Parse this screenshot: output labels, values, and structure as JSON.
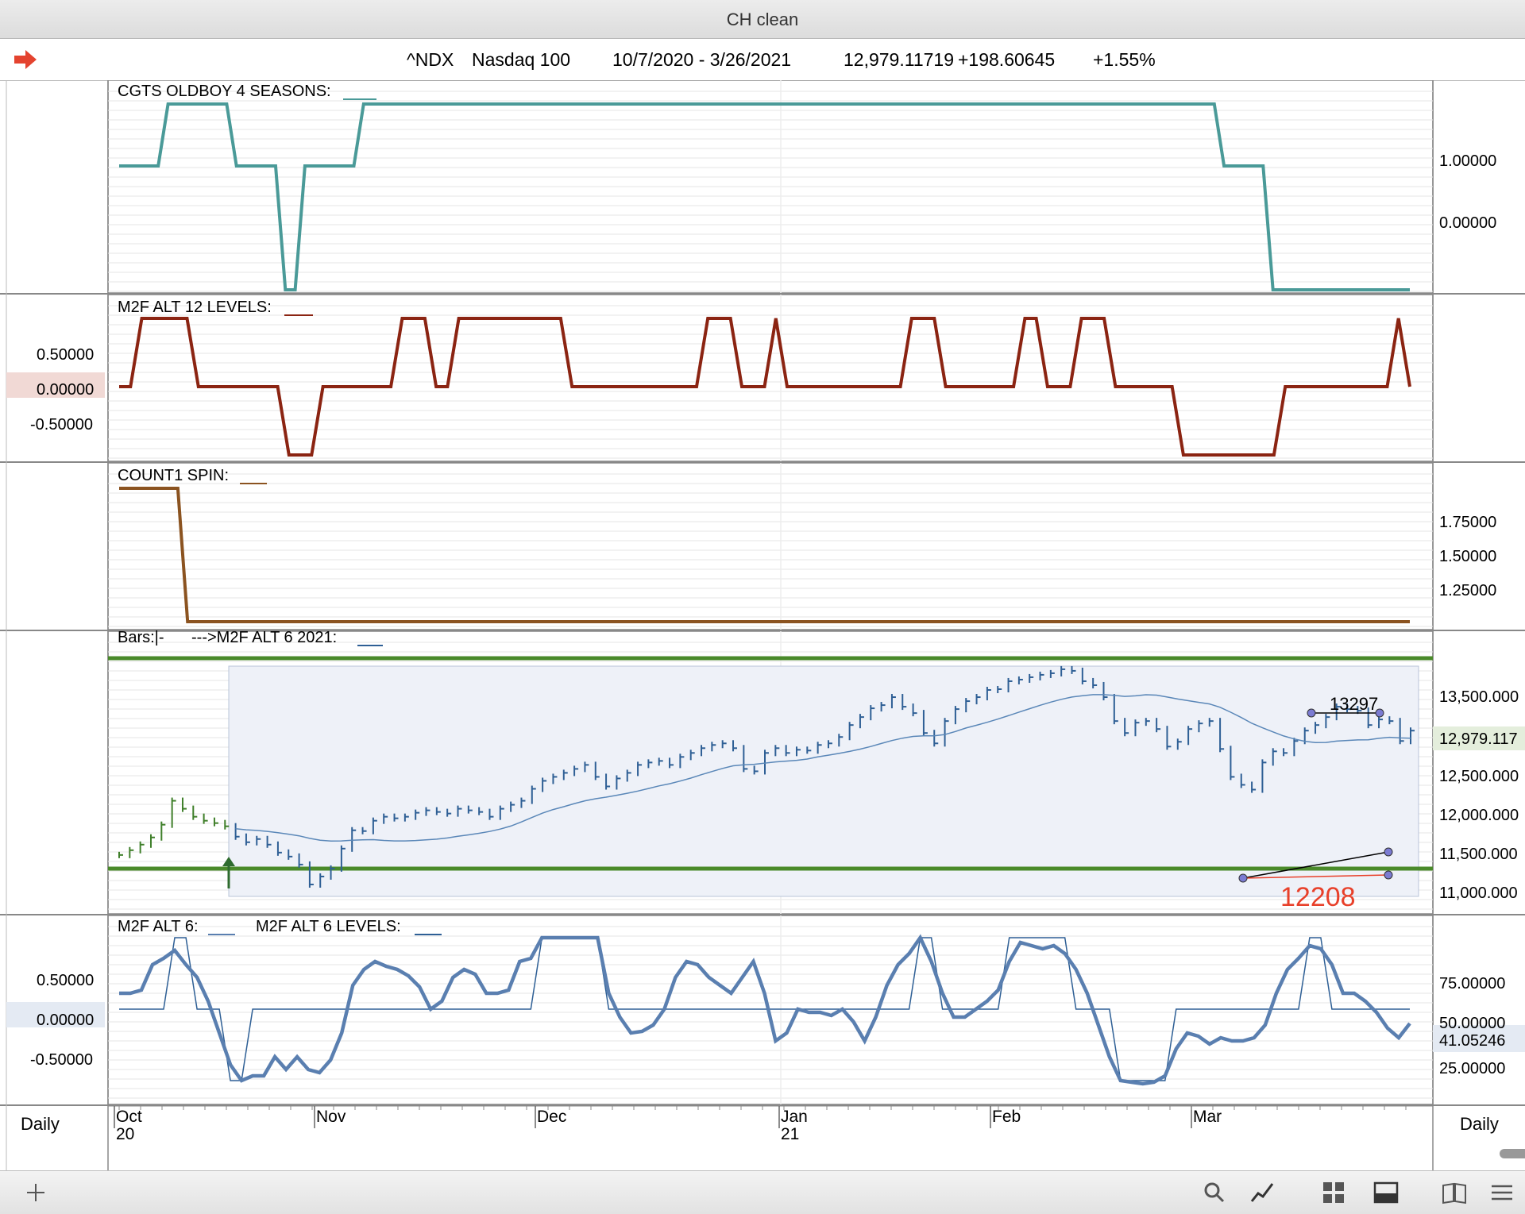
{
  "window": {
    "title": "CH clean"
  },
  "header": {
    "symbol": "^NDX",
    "name": "Nasdaq 100",
    "range": "10/7/2020 - 3/26/2021",
    "price": "12,979.11719",
    "change": "+198.60645",
    "pct": "+1.55%"
  },
  "colors": {
    "teal": "#4a9a98",
    "darkred": "#8b2412",
    "brown": "#8b5320",
    "blue": "#2e5f95",
    "green": "#4a8a2a",
    "red": "#e8402a"
  },
  "periodicity": {
    "left": "Daily",
    "right": "Daily"
  },
  "x_axis": {
    "months": [
      {
        "label": "Oct",
        "sub": "20"
      },
      {
        "label": "Nov",
        "sub": ""
      },
      {
        "label": "Dec",
        "sub": ""
      },
      {
        "label": "Jan",
        "sub": "21"
      },
      {
        "label": "Feb",
        "sub": ""
      },
      {
        "label": "Mar",
        "sub": ""
      }
    ]
  },
  "chart_data": [
    {
      "type": "line",
      "title": "CGTS OLDBOY 4 SEASONS:",
      "yticks": [
        "1.00000",
        "0.00000"
      ],
      "series": [
        {
          "name": "CGTS OLDBOY 4 SEASONS",
          "color": "#4a9a98",
          "values": [
            1,
            1,
            1,
            1,
            1,
            2,
            2,
            2,
            2,
            2,
            2,
            2,
            1,
            1,
            1,
            1,
            1,
            -1,
            -1,
            1,
            1,
            1,
            1,
            1,
            1,
            2,
            2,
            2,
            2,
            2,
            2,
            2,
            2,
            2,
            2,
            2,
            2,
            2,
            2,
            2,
            2,
            2,
            2,
            2,
            2,
            2,
            2,
            2,
            2,
            2,
            2,
            2,
            2,
            2,
            2,
            2,
            2,
            2,
            2,
            2,
            2,
            2,
            2,
            2,
            2,
            2,
            2,
            2,
            2,
            2,
            2,
            2,
            2,
            2,
            2,
            2,
            2,
            2,
            2,
            2,
            2,
            2,
            2,
            2,
            2,
            2,
            2,
            2,
            2,
            2,
            2,
            2,
            2,
            2,
            2,
            2,
            2,
            2,
            2,
            2,
            2,
            2,
            2,
            2,
            2,
            2,
            2,
            2,
            2,
            2,
            2,
            2,
            2,
            1,
            1,
            1,
            1,
            1,
            -1,
            -1,
            -1,
            -1,
            -1,
            -1,
            -1,
            -1,
            -1,
            -1,
            -1,
            -1,
            -1,
            -1,
            -1
          ]
        }
      ]
    },
    {
      "type": "line",
      "title": "M2F ALT 12 LEVELS:",
      "yticks": [
        "0.50000",
        "0.00000",
        "-0.50000"
      ],
      "series": [
        {
          "name": "M2F ALT 12 LEVELS",
          "color": "#8b2412",
          "values": [
            0,
            0,
            1,
            1,
            1,
            1,
            1,
            0,
            0,
            0,
            0,
            0,
            0,
            0,
            0,
            -1,
            -1,
            -1,
            0,
            0,
            0,
            0,
            0,
            0,
            0,
            1,
            1,
            1,
            0,
            0,
            1,
            1,
            1,
            1,
            1,
            1,
            1,
            1,
            1,
            1,
            0,
            0,
            0,
            0,
            0,
            0,
            0,
            0,
            0,
            0,
            0,
            0,
            1,
            1,
            1,
            0,
            0,
            0,
            1,
            0,
            0,
            0,
            0,
            0,
            0,
            0,
            0,
            0,
            0,
            0,
            1,
            1,
            1,
            0,
            0,
            0,
            0,
            0,
            0,
            0,
            1,
            1,
            0,
            0,
            0,
            1,
            1,
            1,
            0,
            0,
            0,
            0,
            0,
            0,
            -1,
            -1,
            -1,
            -1,
            -1,
            -1,
            -1,
            -1,
            -1,
            0,
            0,
            0,
            0,
            0,
            0,
            0,
            0,
            0,
            0,
            1,
            0
          ]
        }
      ]
    },
    {
      "type": "line",
      "title": "COUNT1 SPIN:",
      "yticks": [
        "1.75000",
        "1.50000",
        "1.25000"
      ],
      "series": [
        {
          "name": "COUNT1 SPIN",
          "color": "#8b5320",
          "values": [
            2,
            2,
            2,
            2,
            2,
            2,
            2,
            1,
            1,
            1,
            1,
            1,
            1,
            1,
            1,
            1,
            1,
            1,
            1,
            1,
            1,
            1,
            1,
            1,
            1,
            1,
            1,
            1,
            1,
            1,
            1,
            1,
            1,
            1,
            1,
            1,
            1,
            1,
            1,
            1,
            1,
            1,
            1,
            1,
            1,
            1,
            1,
            1,
            1,
            1,
            1,
            1,
            1,
            1,
            1,
            1,
            1,
            1,
            1,
            1,
            1,
            1,
            1,
            1,
            1,
            1,
            1,
            1,
            1,
            1,
            1,
            1,
            1,
            1,
            1,
            1,
            1,
            1,
            1,
            1,
            1,
            1,
            1,
            1,
            1,
            1,
            1,
            1,
            1,
            1,
            1,
            1,
            1,
            1,
            1,
            1,
            1,
            1,
            1,
            1,
            1,
            1,
            1,
            1,
            1,
            1,
            1,
            1,
            1,
            1,
            1,
            1,
            1,
            1,
            1,
            1,
            1,
            1,
            1,
            1,
            1,
            1,
            1,
            1,
            1,
            1,
            1,
            1,
            1,
            1,
            1,
            1,
            1
          ]
        }
      ]
    },
    {
      "type": "bar",
      "title": "Bars:|-",
      "subtitle": "--->M2F ALT 6 2021:",
      "yticks": [
        "13,500.000",
        "13,000.000",
        "12,500.000",
        "12,000.000",
        "11,500.000",
        "11,000.000"
      ],
      "last_price_label": "12,979.117",
      "annotations": [
        "13297",
        "12208"
      ],
      "closes": [
        11420,
        11480,
        11550,
        11640,
        11800,
        12100,
        12000,
        11900,
        11850,
        11820,
        11780,
        11650,
        11580,
        11620,
        11550,
        11450,
        11400,
        11300,
        11050,
        11150,
        11250,
        11500,
        11730,
        11720,
        11850,
        11900,
        11880,
        11900,
        11950,
        11980,
        11960,
        11940,
        12000,
        11980,
        11960,
        11900,
        12000,
        12050,
        12100,
        12250,
        12350,
        12400,
        12450,
        12500,
        12550,
        12400,
        12280,
        12380,
        12450,
        12550,
        12580,
        12600,
        12550,
        12650,
        12700,
        12760,
        12800,
        12820,
        12760,
        12500,
        12470,
        12700,
        12760,
        12700,
        12740,
        12730,
        12800,
        12820,
        12900,
        13050,
        13150,
        13260,
        13300,
        13400,
        13280,
        13200,
        12950,
        12820,
        13100,
        13250,
        13350,
        13400,
        13490,
        13500,
        13600,
        13620,
        13650,
        13680,
        13700,
        13750,
        13730,
        13600,
        13550,
        13400,
        13100,
        12950,
        13080,
        13100,
        13000,
        12780,
        12840,
        13000,
        13070,
        13100,
        12750,
        12400,
        12300,
        12240,
        12580,
        12720,
        12700,
        12850,
        12980,
        13050,
        13150,
        13280,
        13250,
        13230,
        13050,
        13120,
        13100,
        12850,
        12980
      ]
    },
    {
      "type": "line",
      "title": "M2F ALT 6:",
      "subtitle": "M2F ALT 6 LEVELS:",
      "yticks_left": [
        "0.50000",
        "0.00000",
        "-0.50000"
      ],
      "yticks_right": [
        "75.00000",
        "50.00000",
        "25.00000"
      ],
      "last_value_label": "41.05246",
      "series": [
        {
          "name": "M2F ALT 6",
          "color": "#5a7fb0",
          "values": [
            60,
            60,
            62,
            78,
            82,
            87,
            78,
            70,
            55,
            35,
            15,
            5,
            8,
            8,
            20,
            12,
            20,
            12,
            10,
            18,
            35,
            65,
            75,
            80,
            77,
            75,
            71,
            64,
            50,
            55,
            70,
            75,
            72,
            60,
            60,
            62,
            80,
            82,
            95,
            95,
            95,
            95,
            95,
            95,
            60,
            45,
            35,
            36,
            40,
            50,
            70,
            80,
            78,
            70,
            65,
            60,
            70,
            80,
            60,
            30,
            35,
            50,
            48,
            48,
            46,
            50,
            42,
            30,
            45,
            65,
            78,
            85,
            95,
            80,
            60,
            45,
            45,
            50,
            55,
            62,
            80,
            92,
            90,
            88,
            90,
            85,
            75,
            60,
            40,
            20,
            5,
            4,
            3,
            4,
            8,
            25,
            35,
            33,
            28,
            32,
            30,
            30,
            32,
            40,
            60,
            75,
            82,
            90,
            88,
            78,
            60,
            60,
            55,
            48,
            38,
            32,
            41
          ]
        },
        {
          "name": "M2F ALT 6 LEVELS",
          "color": "#2e5f95",
          "values": [
            50,
            50,
            50,
            50,
            50,
            95,
            95,
            50,
            50,
            50,
            5,
            5,
            50,
            50,
            50,
            50,
            50,
            50,
            50,
            50,
            50,
            50,
            50,
            50,
            50,
            50,
            50,
            50,
            50,
            50,
            50,
            50,
            50,
            50,
            50,
            50,
            50,
            50,
            95,
            95,
            95,
            95,
            95,
            95,
            50,
            50,
            50,
            50,
            50,
            50,
            50,
            50,
            50,
            50,
            50,
            50,
            50,
            50,
            50,
            50,
            50,
            50,
            50,
            50,
            50,
            50,
            50,
            50,
            50,
            50,
            50,
            50,
            95,
            95,
            50,
            50,
            50,
            50,
            50,
            50,
            95,
            95,
            95,
            95,
            95,
            95,
            50,
            50,
            50,
            50,
            5,
            5,
            5,
            5,
            5,
            50,
            50,
            50,
            50,
            50,
            50,
            50,
            50,
            50,
            50,
            50,
            50,
            95,
            95,
            50,
            50,
            50,
            50,
            50,
            50,
            50,
            50
          ]
        }
      ]
    }
  ]
}
